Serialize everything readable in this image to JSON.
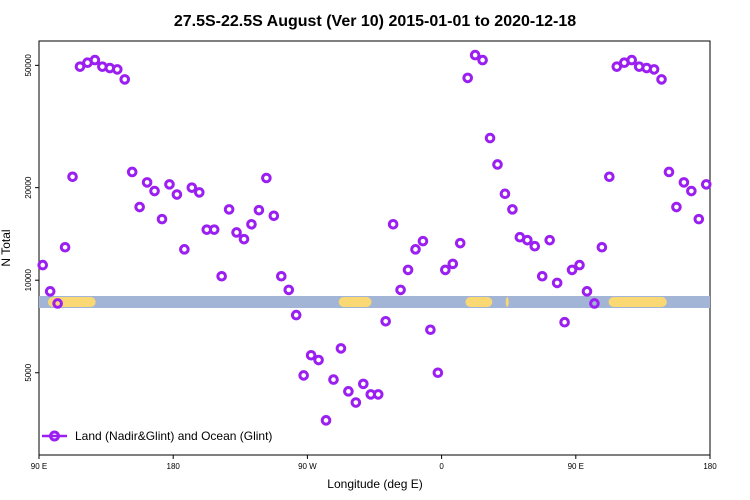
{
  "chart_data": {
    "type": "scatter",
    "title": "27.5S-22.5S August (Ver 10)   2015-01-01 to 2020-12-18",
    "xlabel": "Longitude (deg E)",
    "ylabel": "N Total",
    "x_scale": "linear",
    "y_scale": "log",
    "x_ticks": [
      {
        "value": 90,
        "label": "90 E"
      },
      {
        "value": 180,
        "label": "180"
      },
      {
        "value": 270,
        "label": "90 W"
      },
      {
        "value": 360,
        "label": "0"
      },
      {
        "value": 450,
        "label": "90 E"
      },
      {
        "value": 540,
        "label": "180"
      }
    ],
    "y_ticks": [
      {
        "value": 5000,
        "label": "5000"
      },
      {
        "value": 10000,
        "label": "10000"
      },
      {
        "value": 20000,
        "label": "20000"
      },
      {
        "value": 50000,
        "label": "50000"
      }
    ],
    "legend_position": "bottom-left",
    "grid": false,
    "series": [
      {
        "name": "Land (Nadir&Glint) and Ocean (Glint)",
        "color": "#9b1ff0",
        "marker": "open-circle",
        "x": [
          92.5,
          97.5,
          102.5,
          107.5,
          112.5,
          117.5,
          122.5,
          127.5,
          132.5,
          137.5,
          142.5,
          147.5,
          152.5,
          157.5,
          162.5,
          167.5,
          172.5,
          177.5,
          182.5,
          187.5,
          192.5,
          197.5,
          202.5,
          207.5,
          212.5,
          217.5,
          222.5,
          227.5,
          232.5,
          237.5,
          242.5,
          247.5,
          252.5,
          257.5,
          262.5,
          267.5,
          272.5,
          277.5,
          282.5,
          287.5,
          292.5,
          297.5,
          302.5,
          307.5,
          312.5,
          317.5,
          322.5,
          327.5,
          332.5,
          337.5,
          342.5,
          347.5,
          352.5,
          357.5,
          362.5,
          367.5,
          372.5,
          377.5,
          382.5,
          387.5,
          392.5,
          397.5,
          402.5,
          407.5,
          412.5,
          417.5,
          422.5,
          427.5,
          432.5,
          437.5,
          442.5,
          447.5,
          452.5,
          457.5,
          462.5,
          467.5,
          472.5,
          477.5,
          482.5,
          487.5,
          492.5,
          497.5,
          502.5,
          507.5,
          512.5,
          517.5,
          522.5,
          527.5,
          532.5,
          537.5
        ],
        "values": [
          11200,
          9200,
          8400,
          12800,
          21700,
          49500,
          51000,
          52000,
          49500,
          49000,
          48500,
          45000,
          22500,
          17300,
          20800,
          19500,
          15800,
          20500,
          19000,
          12600,
          20000,
          19300,
          14600,
          14600,
          10300,
          17000,
          14300,
          13600,
          15200,
          16900,
          21500,
          16200,
          10300,
          9300,
          7700,
          4900,
          5700,
          5500,
          3500,
          4750,
          6000,
          4350,
          4000,
          4600,
          4250,
          4250,
          7350,
          15200,
          9300,
          10800,
          12600,
          13400,
          6900,
          5000,
          10800,
          11300,
          13200,
          45500,
          54000,
          52000,
          29000,
          23800,
          19100,
          17000,
          13800,
          13500,
          12900,
          10300,
          13500,
          9800,
          7300,
          10800,
          11200,
          9200,
          8400,
          12800,
          21700,
          49500,
          51000,
          52000,
          49500,
          49000,
          48500,
          45000,
          22500,
          17300,
          20800,
          19500,
          15800,
          20500
        ]
      }
    ],
    "surface_band": {
      "color_ocean": "#a2b5d6",
      "color_land": "#fad974",
      "land_segments": [
        [
          96,
          128
        ],
        [
          291,
          313
        ],
        [
          376,
          394
        ],
        [
          403,
          405
        ],
        [
          472,
          511
        ]
      ]
    }
  }
}
